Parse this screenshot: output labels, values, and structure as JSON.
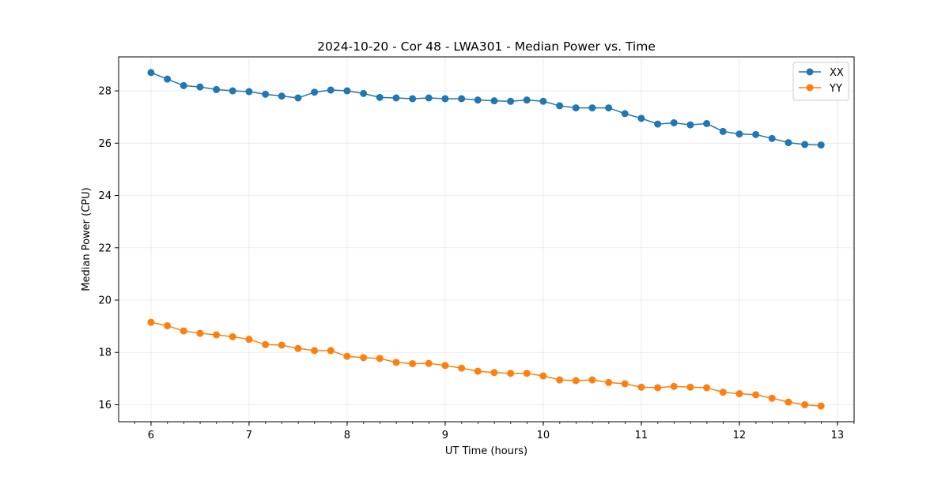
{
  "chart_data": {
    "type": "line",
    "title": "2024-10-20 - Cor 48 - LWA301 - Median Power vs. Time",
    "xlabel": "UT Time (hours)",
    "ylabel": "Median Power (CPU)",
    "xlim": [
      5.67,
      13.17
    ],
    "ylim": [
      15.35,
      29.3
    ],
    "xticks": [
      6,
      7,
      8,
      9,
      10,
      11,
      12,
      13
    ],
    "yticks": [
      16,
      18,
      20,
      22,
      24,
      26,
      28
    ],
    "minor_x_step": 0.1667,
    "grid": true,
    "legend_position": "top-right",
    "x": [
      6.0,
      6.167,
      6.333,
      6.5,
      6.667,
      6.833,
      7.0,
      7.167,
      7.333,
      7.5,
      7.667,
      7.833,
      8.0,
      8.167,
      8.333,
      8.5,
      8.667,
      8.833,
      9.0,
      9.167,
      9.333,
      9.5,
      9.667,
      9.833,
      10.0,
      10.167,
      10.333,
      10.5,
      10.667,
      10.833,
      11.0,
      11.167,
      11.333,
      11.5,
      11.667,
      11.833,
      12.0,
      12.167,
      12.333,
      12.5,
      12.667,
      12.833
    ],
    "series": [
      {
        "name": "XX",
        "color": "#1f77b4",
        "values": [
          28.7,
          28.45,
          28.2,
          28.15,
          28.05,
          28.0,
          27.97,
          27.87,
          27.8,
          27.73,
          27.95,
          28.03,
          28.0,
          27.9,
          27.75,
          27.73,
          27.7,
          27.73,
          27.7,
          27.7,
          27.65,
          27.62,
          27.6,
          27.65,
          27.6,
          27.43,
          27.35,
          27.35,
          27.35,
          27.13,
          26.95,
          26.73,
          26.78,
          26.7,
          26.75,
          26.45,
          26.35,
          26.33,
          26.18,
          26.02,
          25.95,
          25.93
        ]
      },
      {
        "name": "YY",
        "color": "#ff7f0e",
        "values": [
          19.15,
          19.02,
          18.82,
          18.73,
          18.67,
          18.6,
          18.5,
          18.3,
          18.28,
          18.15,
          18.07,
          18.07,
          17.85,
          17.8,
          17.77,
          17.62,
          17.57,
          17.58,
          17.5,
          17.4,
          17.28,
          17.23,
          17.2,
          17.2,
          17.1,
          16.95,
          16.92,
          16.95,
          16.85,
          16.8,
          16.67,
          16.65,
          16.7,
          16.67,
          16.65,
          16.48,
          16.42,
          16.38,
          16.25,
          16.1,
          16.0,
          15.95
        ]
      }
    ]
  }
}
